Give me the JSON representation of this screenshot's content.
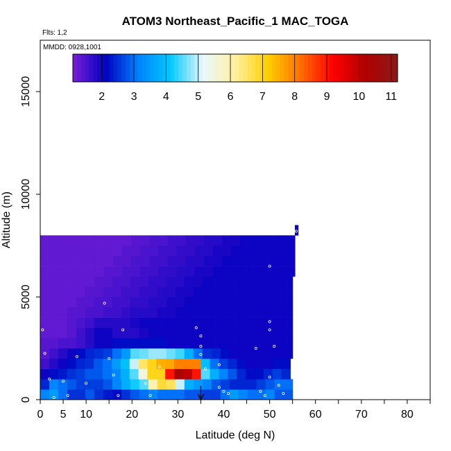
{
  "chart_data": {
    "type": "heatmap",
    "title": "ATOM3 Northeast_Pacific_1 MAC_TOGA",
    "flights_label": "Flts: 1,2",
    "dates_label": "MMDD: 0928,1001",
    "xlabel": "Latitude (deg N)",
    "ylabel": "Altitude (m)",
    "xlim": [
      0,
      85
    ],
    "ylim": [
      0,
      17500
    ],
    "x_ticks": [
      0,
      5,
      10,
      20,
      30,
      40,
      50,
      60,
      70,
      80
    ],
    "y_ticks": [
      0,
      5000,
      10000,
      15000
    ],
    "y_tick_labels": [
      "0",
      "5000",
      "10000",
      "15000"
    ],
    "colorbar": {
      "range": [
        1.1,
        11.2
      ],
      "ticks": [
        2,
        3,
        4,
        5,
        6,
        7,
        8,
        9,
        10,
        11
      ],
      "colors": [
        "#7a1fd6",
        "#0000c0",
        "#0080ff",
        "#00c8ff",
        "#e8f8ff",
        "#fff0a0",
        "#ffd000",
        "#ff7000",
        "#ff0000",
        "#b00000",
        "#8b1a1a"
      ]
    },
    "altitude_bands": [
      {
        "alt": [
          0,
          500
        ],
        "x_end": 55,
        "values": [
          3.2,
          3.5,
          3.0,
          2.5,
          2.5,
          2.8,
          2.5,
          2.3,
          2.2,
          2.5,
          2.8,
          3.0,
          3.2,
          3.0,
          3.0,
          3.0,
          2.8,
          2.8,
          2.6,
          2.6,
          3.0,
          3.5,
          3.2,
          3.0,
          3.0,
          3.2,
          2.8,
          2.8
        ]
      },
      {
        "alt": [
          500,
          1000
        ],
        "x_end": 55,
        "values": [
          2.4,
          3.2,
          3.0,
          2.8,
          2.6,
          2.6,
          2.6,
          2.8,
          3.2,
          3.8,
          4.2,
          4.5,
          6.0,
          6.8,
          6.6,
          5.0,
          3.8,
          3.5,
          3.2,
          2.8,
          2.6,
          2.4,
          2.4,
          2.4,
          2.6,
          2.8,
          3.0,
          3.0
        ]
      },
      {
        "alt": [
          1000,
          1500
        ],
        "x_end": 54.5,
        "values": [
          2.0,
          2.2,
          2.3,
          2.5,
          2.6,
          2.8,
          2.8,
          3.0,
          3.2,
          3.8,
          4.5,
          5.5,
          7.0,
          7.0,
          9.0,
          10.4,
          10.0,
          9.0,
          4.5,
          3.8,
          3.2,
          2.8,
          2.4,
          2.2,
          2.2,
          2.4,
          2.6,
          2.4
        ]
      },
      {
        "alt": [
          1500,
          2000
        ],
        "x_end": 54.5,
        "values": [
          1.6,
          1.8,
          2.0,
          2.2,
          2.4,
          2.5,
          2.8,
          3.0,
          3.5,
          4.0,
          5.0,
          6.5,
          7.0,
          7.5,
          7.6,
          8.0,
          8.0,
          8.0,
          4.0,
          3.0,
          2.6,
          2.4,
          2.2,
          2.0,
          2.0,
          2.0,
          2.2,
          2.2
        ]
      },
      {
        "alt": [
          2000,
          2500
        ],
        "x_end": 55,
        "values": [
          1.4,
          1.6,
          1.8,
          2.0,
          2.2,
          2.4,
          2.5,
          2.6,
          3.0,
          3.5,
          4.5,
          4.6,
          4.8,
          4.8,
          4.6,
          4.4,
          3.8,
          3.0,
          2.5,
          2.4,
          2.2,
          2.0,
          2.0,
          2.0,
          2.0,
          2.0,
          2.0,
          2.0
        ]
      },
      {
        "alt": [
          2500,
          3000
        ],
        "x_end": 55,
        "values": [
          1.4,
          1.4,
          1.5,
          1.5,
          1.6,
          1.8,
          2.0,
          2.0,
          2.2,
          2.2,
          2.2,
          2.2,
          2.2,
          2.2,
          2.0,
          2.0,
          2.0,
          2.0,
          2.0,
          2.0,
          2.0,
          2.0,
          2.0,
          2.0,
          2.0,
          2.0,
          2.0,
          2.0
        ]
      },
      {
        "alt": [
          3000,
          3500
        ],
        "x_end": 55,
        "values": [
          1.3,
          1.3,
          1.3,
          1.4,
          1.6,
          1.8,
          2.0,
          2.0,
          1.8,
          1.8,
          1.8,
          1.9,
          2.0,
          2.0,
          2.0,
          2.0,
          2.0,
          2.0,
          2.0,
          2.0,
          2.0,
          2.0,
          2.0,
          2.0,
          2.0,
          2.0,
          2.0,
          2.0
        ]
      },
      {
        "alt": [
          3500,
          4000
        ],
        "x_end": 55,
        "values": [
          1.3,
          1.3,
          1.3,
          1.4,
          1.5,
          1.6,
          1.8,
          1.8,
          1.8,
          1.8,
          1.9,
          2.0,
          2.0,
          2.0,
          2.0,
          2.0,
          2.0,
          2.0,
          2.0,
          2.0,
          2.0,
          2.0,
          2.0,
          2.0,
          2.0,
          2.0,
          2.0,
          2.0
        ]
      },
      {
        "alt": [
          4000,
          4500
        ],
        "x_end": 55,
        "values": [
          1.3,
          1.3,
          1.3,
          1.4,
          1.4,
          1.5,
          1.5,
          1.6,
          1.6,
          1.7,
          1.8,
          1.8,
          1.8,
          1.9,
          1.9,
          2.0,
          2.0,
          2.0,
          2.0,
          2.0,
          2.0,
          2.0,
          2.0,
          2.0,
          2.0,
          2.0,
          2.0,
          2.0
        ]
      },
      {
        "alt": [
          4500,
          5000
        ],
        "x_end": 55,
        "values": [
          1.3,
          1.3,
          1.3,
          1.3,
          1.4,
          1.4,
          1.5,
          1.5,
          1.6,
          1.6,
          1.7,
          1.7,
          1.8,
          1.8,
          1.9,
          1.9,
          2.0,
          2.0,
          2.0,
          2.0,
          2.0,
          2.0,
          2.0,
          2.0,
          2.0,
          2.0,
          2.0,
          2.0
        ]
      },
      {
        "alt": [
          5000,
          5500
        ],
        "x_end": 55,
        "values": [
          1.3,
          1.3,
          1.3,
          1.3,
          1.3,
          1.4,
          1.4,
          1.5,
          1.5,
          1.6,
          1.6,
          1.7,
          1.7,
          1.8,
          1.8,
          1.9,
          1.9,
          2.0,
          2.0,
          2.0,
          2.0,
          2.0,
          2.0,
          2.0,
          2.0,
          2.0,
          2.0,
          2.0
        ]
      },
      {
        "alt": [
          5500,
          6000
        ],
        "x_end": 55,
        "values": [
          1.3,
          1.3,
          1.3,
          1.3,
          1.3,
          1.3,
          1.4,
          1.4,
          1.5,
          1.5,
          1.6,
          1.6,
          1.7,
          1.7,
          1.8,
          1.8,
          1.9,
          1.9,
          2.0,
          2.0,
          2.0,
          2.0,
          2.0,
          2.0,
          2.0,
          2.0,
          2.0,
          2.0
        ]
      },
      {
        "alt": [
          6000,
          6500
        ],
        "x_end": 55.5,
        "values": [
          1.3,
          1.3,
          1.3,
          1.3,
          1.3,
          1.3,
          1.3,
          1.4,
          1.4,
          1.5,
          1.5,
          1.6,
          1.6,
          1.7,
          1.7,
          1.8,
          1.8,
          1.9,
          1.9,
          2.0,
          2.0,
          2.0,
          2.0,
          2.0,
          2.0,
          2.0,
          2.0,
          2.0
        ]
      },
      {
        "alt": [
          6500,
          7000
        ],
        "x_end": 55.5,
        "values": [
          1.3,
          1.3,
          1.3,
          1.3,
          1.3,
          1.3,
          1.3,
          1.3,
          1.4,
          1.4,
          1.5,
          1.5,
          1.6,
          1.6,
          1.7,
          1.7,
          1.8,
          1.8,
          1.9,
          1.9,
          2.0,
          2.0,
          2.0,
          2.0,
          2.0,
          2.0,
          2.0,
          2.0
        ]
      },
      {
        "alt": [
          7000,
          7500
        ],
        "x_end": 55.5,
        "values": [
          1.3,
          1.3,
          1.3,
          1.3,
          1.3,
          1.3,
          1.3,
          1.3,
          1.3,
          1.4,
          1.4,
          1.5,
          1.5,
          1.6,
          1.6,
          1.7,
          1.7,
          1.8,
          1.8,
          1.9,
          1.9,
          2.0,
          2.0,
          2.0,
          2.0,
          2.0,
          2.0,
          2.0
        ]
      },
      {
        "alt": [
          7500,
          8000
        ],
        "x_end": 55.5,
        "values": [
          1.3,
          1.3,
          1.3,
          1.3,
          1.3,
          1.3,
          1.3,
          1.3,
          1.3,
          1.3,
          1.4,
          1.4,
          1.5,
          1.5,
          1.6,
          1.6,
          1.7,
          1.7,
          1.8,
          1.8,
          1.9,
          1.9,
          2.0,
          2.0,
          2.0,
          2.0,
          2.0,
          2.0
        ]
      },
      {
        "alt": [
          8000,
          8500
        ],
        "x_end": 56.2,
        "values": [
          2.0
        ]
      }
    ],
    "sample_points": [
      [
        0.5,
        3400
      ],
      [
        1,
        2250
      ],
      [
        2,
        1000
      ],
      [
        3,
        100
      ],
      [
        5,
        900
      ],
      [
        6,
        200
      ],
      [
        8,
        2100
      ],
      [
        10,
        800
      ],
      [
        14,
        4700
      ],
      [
        15,
        2000
      ],
      [
        16,
        1200
      ],
      [
        17,
        200
      ],
      [
        18,
        3400
      ],
      [
        23,
        800
      ],
      [
        24,
        200
      ],
      [
        26,
        1600
      ],
      [
        34,
        3500
      ],
      [
        35,
        3100
      ],
      [
        35,
        2600
      ],
      [
        35,
        2200
      ],
      [
        36,
        1500
      ],
      [
        39,
        1700
      ],
      [
        39,
        600
      ],
      [
        40,
        400
      ],
      [
        41,
        300
      ],
      [
        47,
        2500
      ],
      [
        48,
        400
      ],
      [
        49,
        200
      ],
      [
        50,
        6500
      ],
      [
        50,
        3800
      ],
      [
        50,
        3400
      ],
      [
        50,
        1100
      ],
      [
        51,
        2600
      ],
      [
        52,
        700
      ],
      [
        53,
        300
      ],
      [
        55.8,
        8200
      ]
    ],
    "marker_lat": 35
  }
}
